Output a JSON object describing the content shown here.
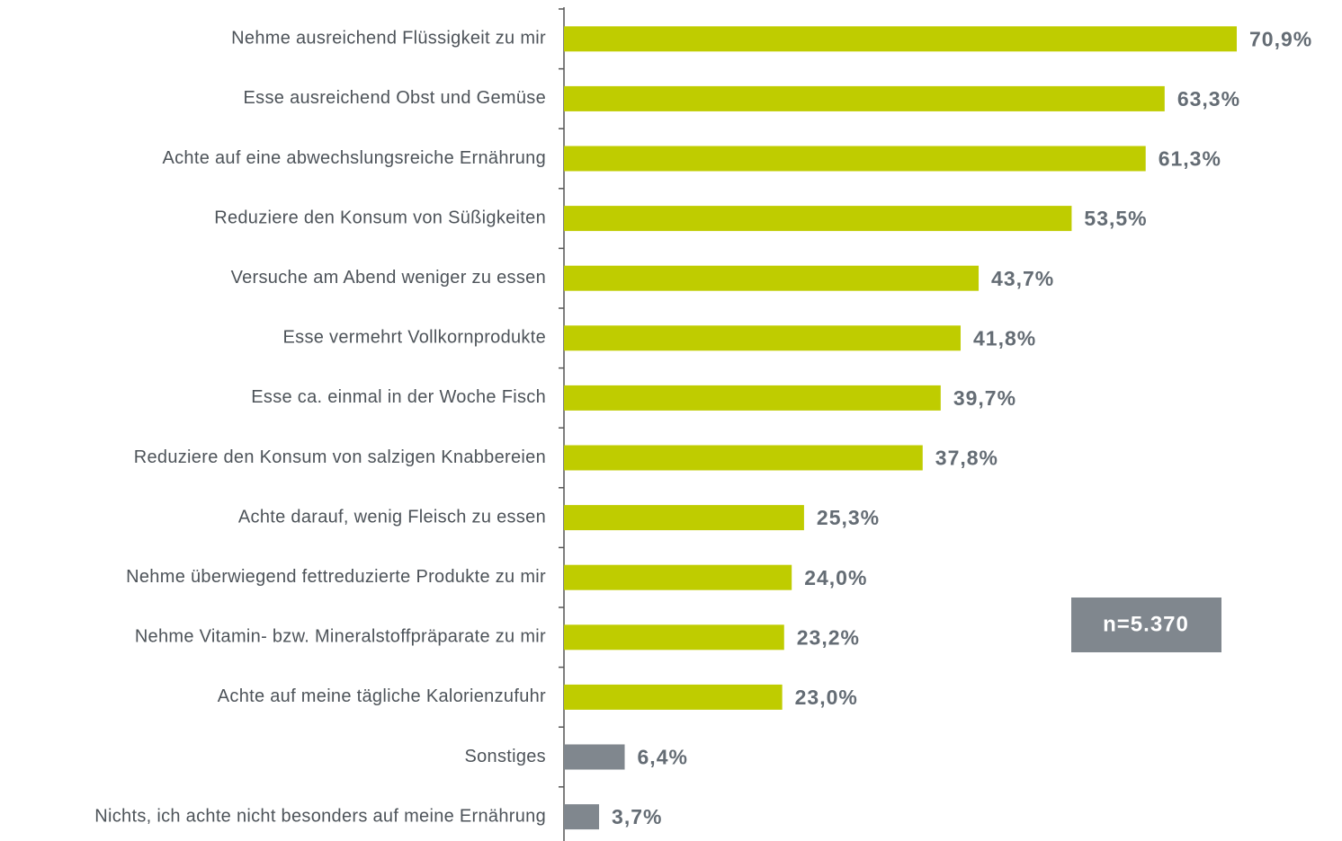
{
  "chart_data": {
    "type": "bar",
    "orientation": "horizontal",
    "categories": [
      "Nehme ausreichend Flüssigkeit zu mir",
      "Esse ausreichend Obst und Gemüse",
      "Achte auf eine abwechslungsreiche Ernährung",
      "Reduziere den Konsum von Süßigkeiten",
      "Versuche am Abend weniger zu essen",
      "Esse vermehrt Vollkornprodukte",
      "Esse ca. einmal in der Woche Fisch",
      "Reduziere den Konsum von salzigen Knabbereien",
      "Achte darauf, wenig Fleisch zu essen",
      "Nehme überwiegend fettreduzierte Produkte zu mir",
      "Nehme Vitamin- bzw. Mineralstoffpräparate zu mir",
      "Achte auf meine tägliche Kalorienzufuhr",
      "Sonstiges",
      "Nichts, ich achte nicht besonders auf meine Ernährung"
    ],
    "values": [
      70.9,
      63.3,
      61.3,
      53.5,
      43.7,
      41.8,
      39.7,
      37.8,
      25.3,
      24.0,
      23.2,
      23.0,
      6.4,
      3.7
    ],
    "value_labels": [
      "70,9%",
      "63,3%",
      "61,3%",
      "53,5%",
      "43,7%",
      "41,8%",
      "39,7%",
      "37,8%",
      "25,3%",
      "24,0%",
      "23,2%",
      "23,0%",
      "6,4%",
      "3,7%"
    ],
    "colors": [
      "#bfcc00",
      "#bfcc00",
      "#bfcc00",
      "#bfcc00",
      "#bfcc00",
      "#bfcc00",
      "#bfcc00",
      "#bfcc00",
      "#bfcc00",
      "#bfcc00",
      "#bfcc00",
      "#bfcc00",
      "#80878e",
      "#80878e"
    ],
    "annotation": "n=5.370"
  }
}
